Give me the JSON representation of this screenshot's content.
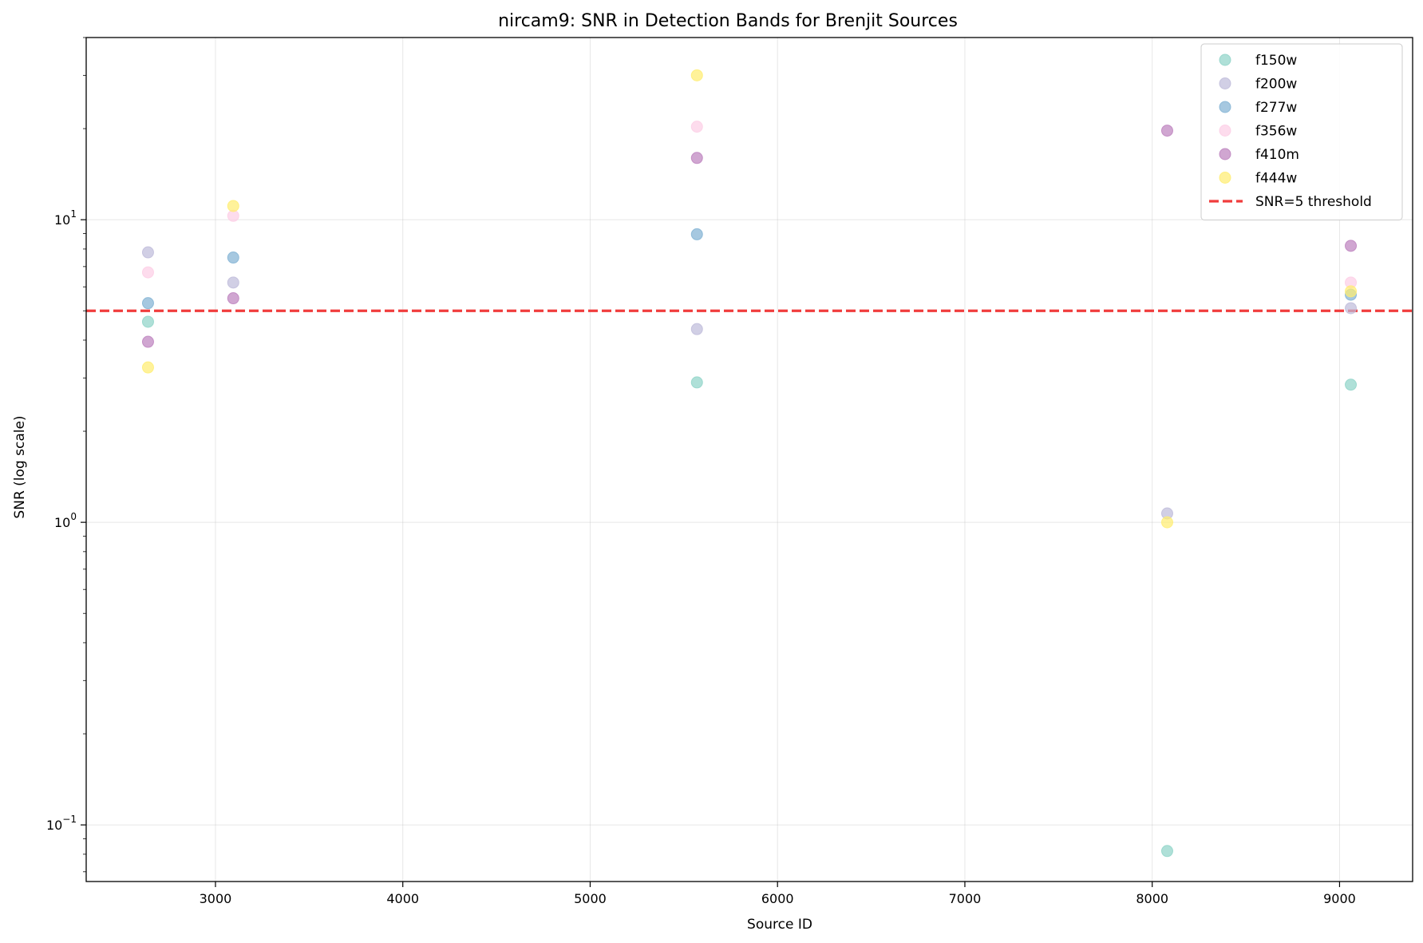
{
  "chart_data": {
    "type": "scatter",
    "title": "nircam9: SNR in Detection Bands for Brenjit Sources",
    "xlabel": "Source ID",
    "ylabel": "SNR (log scale)",
    "xlim": [
      2310,
      9390
    ],
    "ylim": [
      0.065,
      40
    ],
    "yscale": "log",
    "grid": true,
    "legend_position": "top-right",
    "xticks": [
      3000,
      4000,
      5000,
      6000,
      7000,
      8000,
      9000
    ],
    "xtick_labels": [
      "3000",
      "4000",
      "5000",
      "6000",
      "7000",
      "8000",
      "9000"
    ],
    "yticks": [
      0.1,
      1,
      10
    ],
    "ytick_labels": [
      {
        "base": "10",
        "exp": "−1"
      },
      {
        "base": "10",
        "exp": "0"
      },
      {
        "base": "10",
        "exp": "1"
      }
    ],
    "threshold": {
      "name": "SNR=5 threshold",
      "value": 5,
      "color": "#f03c3c",
      "style": "dashed"
    },
    "series": [
      {
        "name": "f150w",
        "color": "#8dd3c7",
        "points": [
          [
            2640,
            4.6
          ],
          [
            5570,
            2.9
          ],
          [
            8080,
            0.082
          ],
          [
            9060,
            2.85
          ]
        ]
      },
      {
        "name": "f200w",
        "color": "#bebada",
        "points": [
          [
            2640,
            7.8
          ],
          [
            3095,
            6.2
          ],
          [
            5570,
            4.35
          ],
          [
            8080,
            1.07
          ],
          [
            9060,
            5.1
          ]
        ]
      },
      {
        "name": "f277w",
        "color": "#80b1d3",
        "points": [
          [
            2640,
            5.3
          ],
          [
            3095,
            7.5
          ],
          [
            5570,
            8.95
          ],
          [
            9060,
            5.65
          ]
        ]
      },
      {
        "name": "f356w",
        "color": "#fccde5",
        "points": [
          [
            2640,
            6.7
          ],
          [
            3095,
            10.3
          ],
          [
            5570,
            20.3
          ],
          [
            9060,
            6.2
          ]
        ]
      },
      {
        "name": "f410m",
        "color": "#bc80bd",
        "points": [
          [
            2640,
            3.95
          ],
          [
            3095,
            5.5
          ],
          [
            5570,
            16.0
          ],
          [
            8080,
            19.7
          ],
          [
            9060,
            8.2
          ]
        ]
      },
      {
        "name": "f444w",
        "color": "#ffed6f",
        "points": [
          [
            2640,
            3.25
          ],
          [
            3095,
            11.1
          ],
          [
            5570,
            30.0
          ],
          [
            8080,
            1.0
          ],
          [
            9060,
            5.8
          ]
        ]
      }
    ]
  }
}
